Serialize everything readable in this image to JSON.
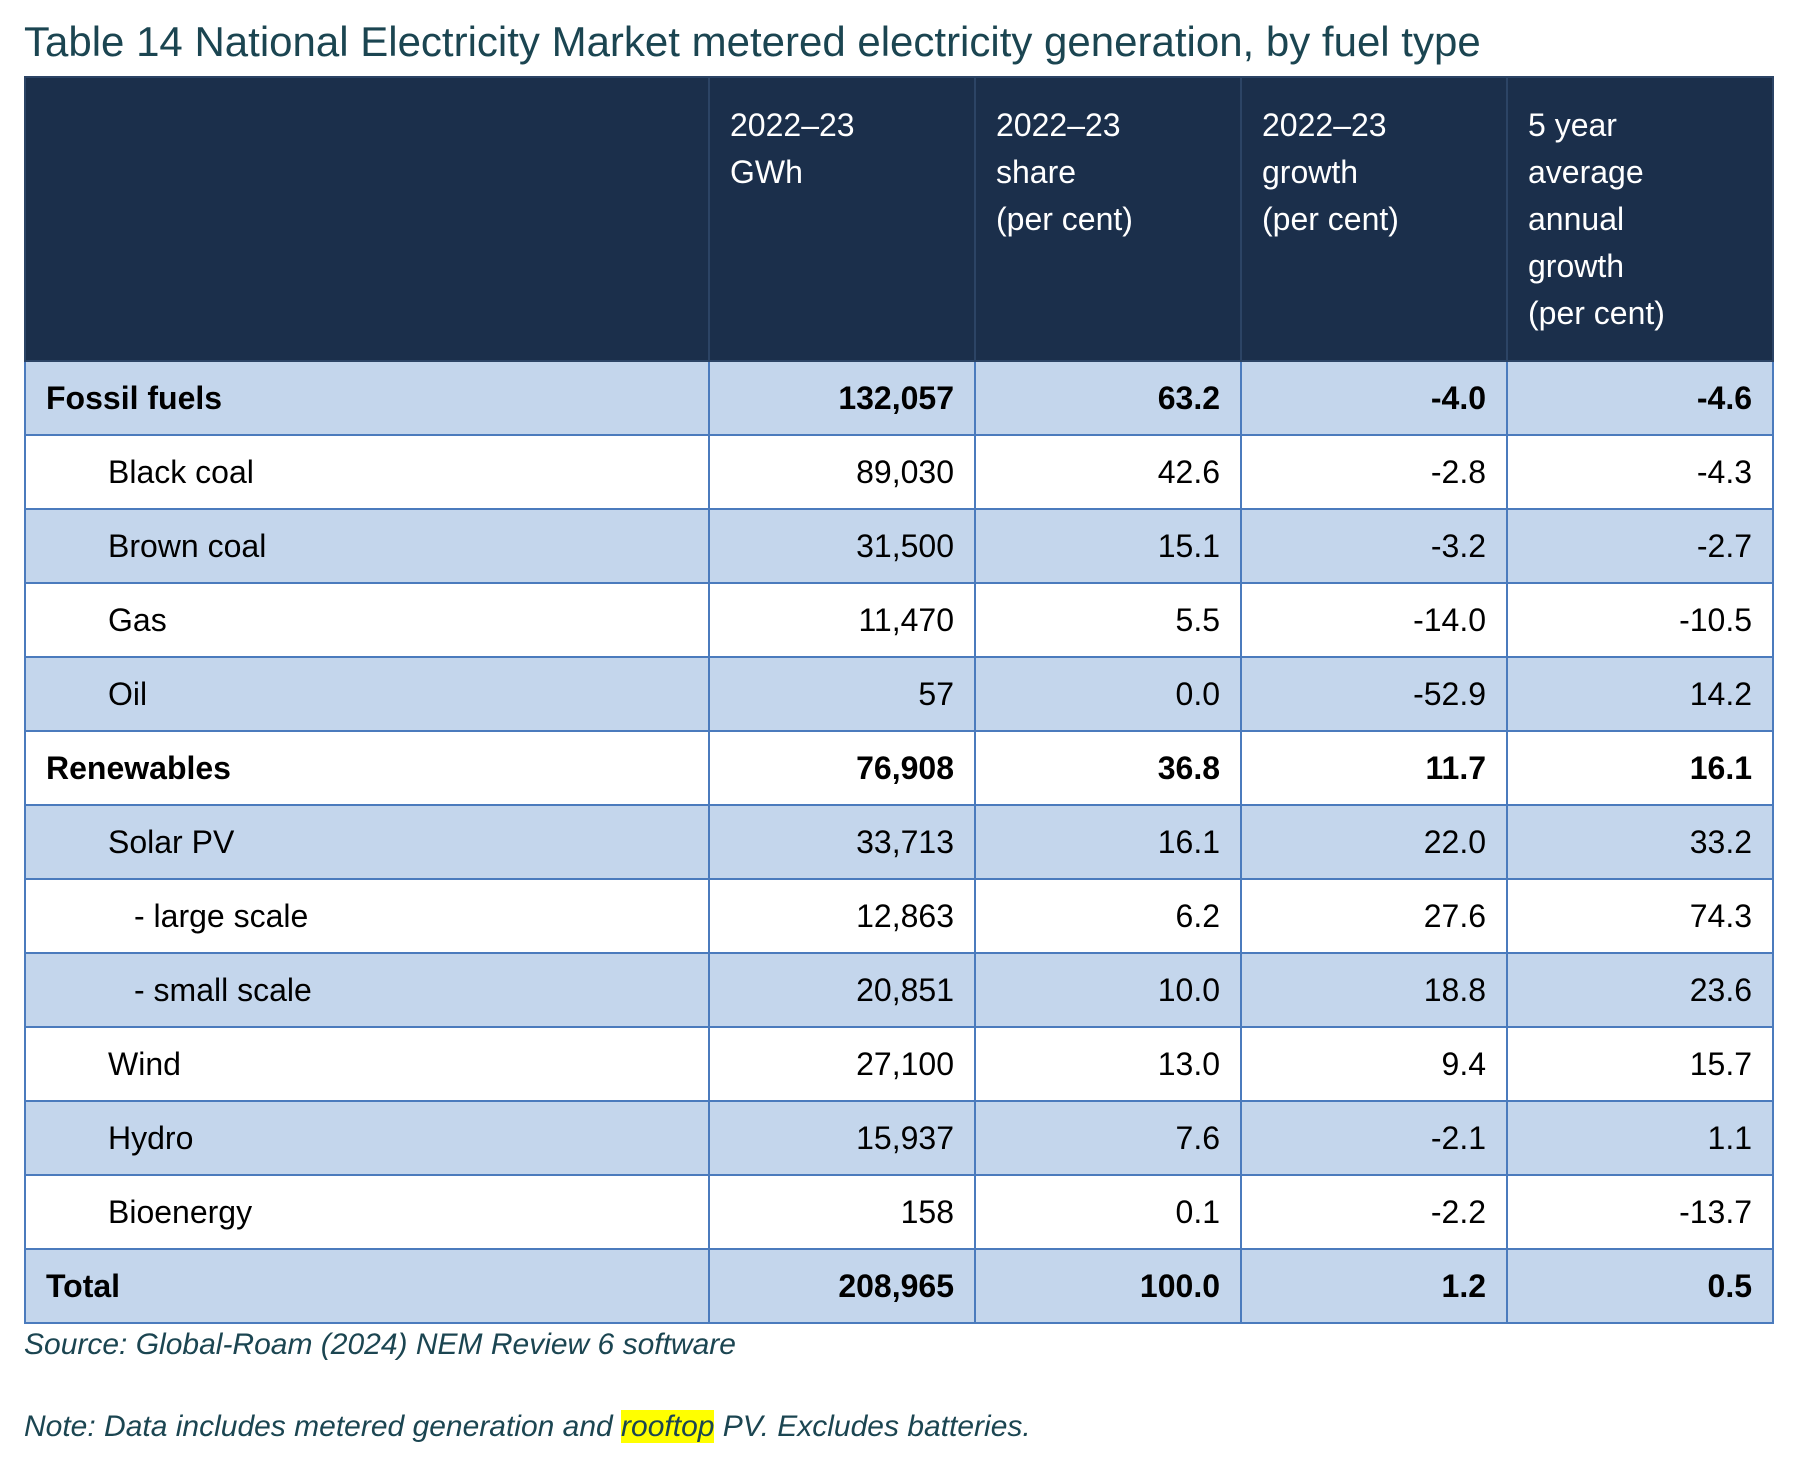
{
  "title": "Table 14 National Electricity Market metered electricity generation, by fuel type",
  "table": {
    "headers": [
      "",
      "2022–23\nGWh",
      "2022–23\nshare\n(per cent)",
      "2022–23\ngrowth\n(per cent)",
      "5 year\naverage\nannual\ngrowth\n(per cent)"
    ],
    "rows": [
      {
        "label": "Fossil fuels",
        "values": [
          "132,057",
          "63.2",
          "-4.0",
          "-4.6"
        ]
      },
      {
        "label": "Black coal",
        "values": [
          "89,030",
          "42.6",
          "-2.8",
          "-4.3"
        ]
      },
      {
        "label": "Brown coal",
        "values": [
          "31,500",
          "15.1",
          "-3.2",
          "-2.7"
        ]
      },
      {
        "label": "Gas",
        "values": [
          "11,470",
          "5.5",
          "-14.0",
          "-10.5"
        ]
      },
      {
        "label": "Oil",
        "values": [
          "57",
          "0.0",
          "-52.9",
          "14.2"
        ]
      },
      {
        "label": "Renewables",
        "values": [
          "76,908",
          "36.8",
          "11.7",
          "16.1"
        ]
      },
      {
        "label": "Solar PV",
        "values": [
          "33,713",
          "16.1",
          "22.0",
          "33.2"
        ]
      },
      {
        "label": "- large scale",
        "values": [
          "12,863",
          "6.2",
          "27.6",
          "74.3"
        ]
      },
      {
        "label": "- small scale",
        "values": [
          "20,851",
          "10.0",
          "18.8",
          "23.6"
        ]
      },
      {
        "label": "Wind",
        "values": [
          "27,100",
          "13.0",
          "9.4",
          "15.7"
        ]
      },
      {
        "label": "Hydro",
        "values": [
          "15,937",
          "7.6",
          "-2.1",
          "1.1"
        ]
      },
      {
        "label": "Bioenergy",
        "values": [
          "158",
          "0.1",
          "-2.2",
          "-13.7"
        ]
      },
      {
        "label": "Total",
        "values": [
          "208,965",
          "100.0",
          "1.2",
          "0.5"
        ]
      }
    ]
  },
  "source": "Source: Global-Roam (2024) NEM Review 6 software",
  "note": {
    "before": "Note: Data includes metered generation and ",
    "highlight": "rooftop",
    "after": " PV. Excludes batteries."
  },
  "colors": {
    "header_bg": "#1b2f4b",
    "shaded_row": "#c4d6ec",
    "border": "#4b7bbd",
    "title_text": "#1b4551",
    "highlight": "#ffff00"
  }
}
